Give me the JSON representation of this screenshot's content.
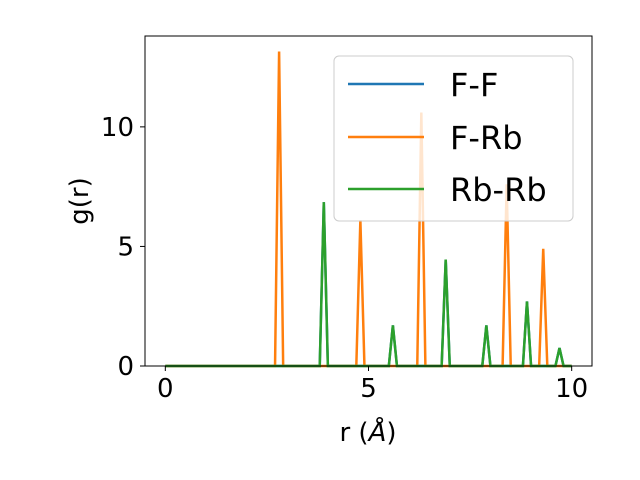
{
  "chart_data": {
    "type": "line",
    "xlabel_main": "r (",
    "xlabel_unit": "Å",
    "xlabel_close": ")",
    "ylabel": "g(r)",
    "xlim": [
      -0.5,
      10.5
    ],
    "ylim": [
      0,
      13.8
    ],
    "xticks": [
      0,
      5,
      10
    ],
    "xtick_labels": [
      "0",
      "5",
      "10"
    ],
    "yticks": [
      0,
      5,
      10
    ],
    "ytick_labels": [
      "0",
      "5",
      "10"
    ],
    "grid": false,
    "legend_position": "top-right",
    "peak_half_width": 0.1,
    "series": [
      {
        "name": "F-F",
        "color": "#1f77b4",
        "peaks": [
          [
            3.9,
            6.85
          ],
          [
            5.6,
            1.7
          ],
          [
            6.9,
            4.45
          ],
          [
            7.9,
            1.7
          ],
          [
            8.9,
            2.7
          ],
          [
            9.7,
            0.75
          ]
        ]
      },
      {
        "name": "F-Rb",
        "color": "#ff7f0e",
        "peaks": [
          [
            2.8,
            13.15
          ],
          [
            4.8,
            6.1
          ],
          [
            6.3,
            10.6
          ],
          [
            8.4,
            7.6
          ],
          [
            9.3,
            4.9
          ]
        ]
      },
      {
        "name": "Rb-Rb",
        "color": "#2ca02c",
        "peaks": [
          [
            3.9,
            6.85
          ],
          [
            5.6,
            1.7
          ],
          [
            6.9,
            4.45
          ],
          [
            7.9,
            1.7
          ],
          [
            8.9,
            2.7
          ],
          [
            9.7,
            0.75
          ]
        ]
      }
    ]
  }
}
